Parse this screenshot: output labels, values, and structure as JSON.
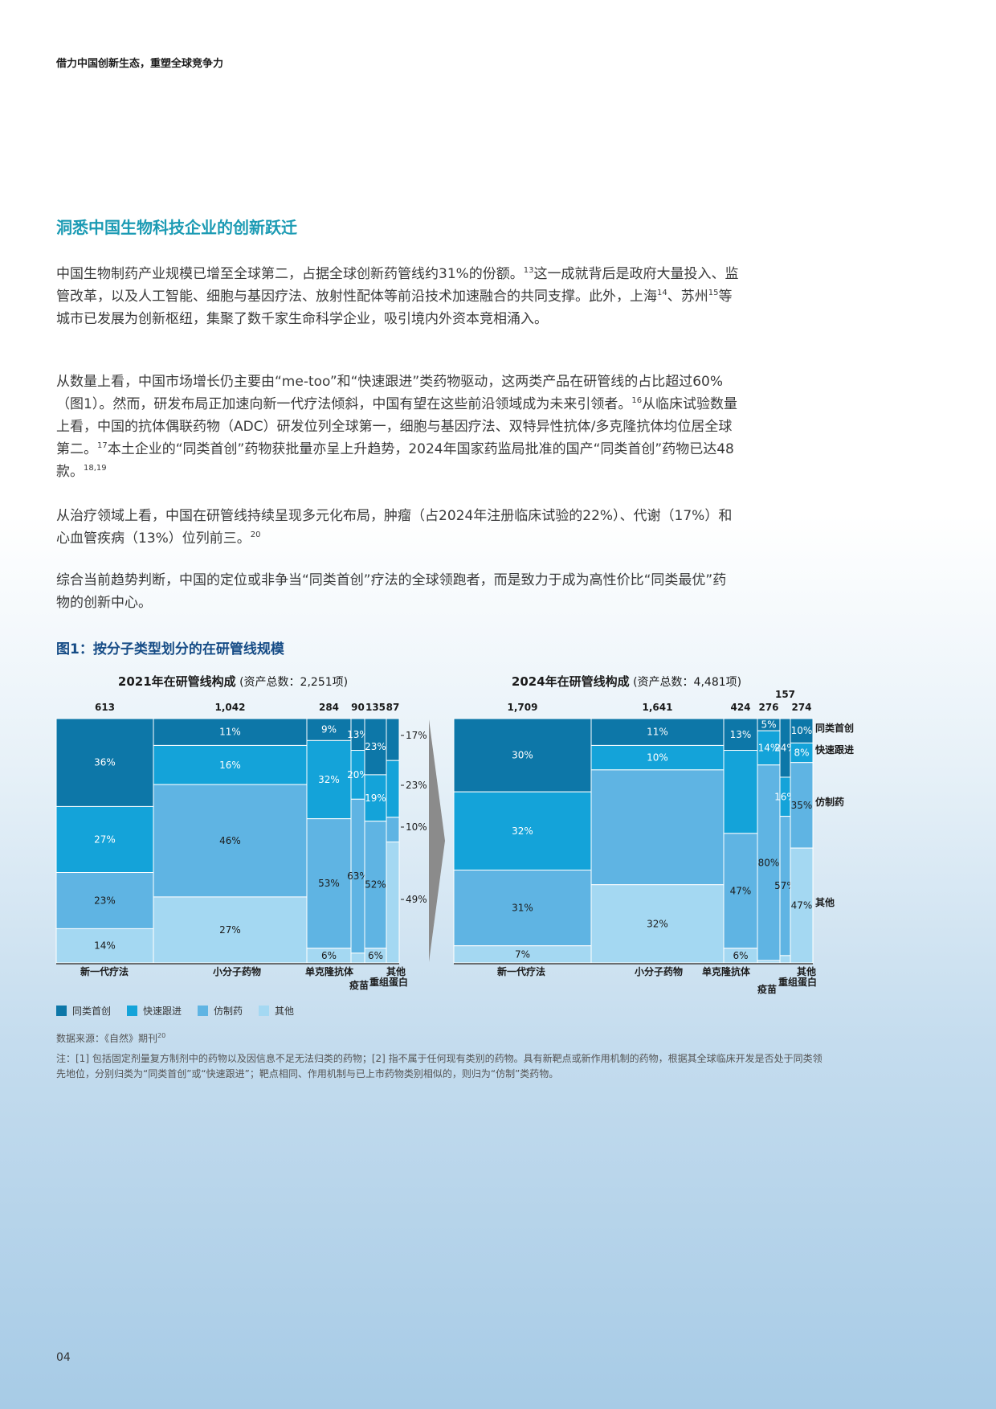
{
  "header": {
    "running_title": "借力中国创新生态，重塑全球竞争力"
  },
  "section": {
    "title": "洞悉中国生物科技企业的创新跃迁"
  },
  "paragraphs": {
    "p1": [
      {
        "t": "中国生物制药产业规模已增至全球第二，占据全球创新药管线约31%的份额。"
      },
      {
        "sup": "13"
      },
      {
        "t": "这一成就背后是政府大量投入、监管改革，以及人工智能、细胞与基因疗法、放射性配体等前沿技术加速融合的共同支撑。此外，上海"
      },
      {
        "sup": "14"
      },
      {
        "t": "、苏州"
      },
      {
        "sup": "15"
      },
      {
        "t": "等城市已发展为创新枢纽，集聚了数千家生命科学企业，吸引境内外资本竞相涌入。"
      }
    ],
    "p2": [
      {
        "t": "从数量上看，中国市场增长仍主要由“me-too”和“快速跟进”类药物驱动，这两类产品在研管线的占比超过60%（图1）。然而，研发布局正加速向新一代疗法倾斜，中国有望在这些前沿领域成为未来引领者。"
      },
      {
        "sup": "16"
      },
      {
        "t": "从临床试验数量上看，中国的抗体偶联药物（ADC）研发位列全球第一，细胞与基因疗法、双特异性抗体/多克隆抗体均位居全球第二。"
      },
      {
        "sup": "17"
      },
      {
        "t": "本土企业的“同类首创”药物获批量亦呈上升趋势，2024年国家药监局批准的国产“同类首创”药物已达48款。"
      },
      {
        "sup": "18,19"
      }
    ],
    "p3": [
      {
        "t": "从治疗领域上看，中国在研管线持续呈现多元化布局，肿瘤（占2024年注册临床试验的22%）、代谢（17%）和心血管疾病（13%）位列前三。"
      },
      {
        "sup": "20"
      }
    ],
    "p4": [
      {
        "t": "综合当前趋势判断，中国的定位或非争当“同类首创”疗法的全球领跑者，而是致力于成为高性价比“同类最优”药物的创新中心。"
      }
    ]
  },
  "figure": {
    "title": "图1：按分子类型划分的在研管线规模",
    "source_text": "数据来源：《自然》期刊",
    "source_sup": "20",
    "note": "注：[1] 包括固定剂量复方制剂中的药物以及因信息不足无法归类的药物；[2] 指不属于任何现有类别的药物。具有新靶点或新作用机制的药物，根据其全球临床开发是否处于同类领先地位，分别归类为“同类首创”或“快速跟进”；靶点相同、作用机制与已上市药物类别相似的，则归为“仿制”类药物。"
  },
  "chart_data": [
    {
      "type": "marimekko",
      "title": "2021年在研管线构成",
      "subtitle": "(资产总数：2,251项)",
      "segments": [
        "同类首创",
        "快速跟进",
        "仿制药",
        "其他"
      ],
      "columns": [
        {
          "label": "新一代疗法",
          "total": "613",
          "values": [
            36,
            27,
            23,
            14
          ],
          "labels": [
            "36%",
            "27%",
            "23%",
            "14%"
          ]
        },
        {
          "label": "小分子药物",
          "total": "1,042",
          "values": [
            11,
            16,
            46,
            27
          ],
          "labels": [
            "11%",
            "16%",
            "46%",
            "27%"
          ]
        },
        {
          "label": "单克隆抗体",
          "total": "284",
          "values": [
            9,
            32,
            53,
            6
          ],
          "labels": [
            "9%",
            "32%",
            "53%",
            "6%"
          ]
        },
        {
          "label": "疫苗",
          "total": "90",
          "values": [
            13,
            20,
            63,
            4
          ],
          "labels": [
            "13%",
            "20%",
            "63%",
            ""
          ]
        },
        {
          "label": "重组蛋白",
          "total": "135",
          "values": [
            23,
            19,
            52,
            6
          ],
          "labels": [
            "23%",
            "19%",
            "52%",
            "6%"
          ]
        },
        {
          "label": "其他",
          "total": "87",
          "values": [
            17,
            23,
            10,
            49
          ],
          "labels": [
            "",
            "",
            "",
            ""
          ]
        }
      ],
      "side_labels": [
        "17%",
        "23%",
        "10%",
        "49%"
      ],
      "colors": [
        "#0d77a8",
        "#14a3d9",
        "#5fb4e3",
        "#a4d8f2"
      ]
    },
    {
      "type": "marimekko",
      "title": "2024年在研管线构成",
      "subtitle": "(资产总数：4,481项)",
      "segments": [
        "同类首创",
        "快速跟进",
        "仿制药",
        "其他"
      ],
      "columns": [
        {
          "label": "新一代疗法",
          "total": "1,709",
          "values": [
            30,
            32,
            31,
            7
          ],
          "labels": [
            "30%",
            "32%",
            "31%",
            "7%"
          ]
        },
        {
          "label": "小分子药物",
          "total": "1,641",
          "values": [
            11,
            10,
            47,
            32
          ],
          "labels": [
            "11%",
            "10%",
            "",
            "32%"
          ]
        },
        {
          "label": "单克隆抗体",
          "total": "424",
          "values": [
            13,
            34,
            47,
            6
          ],
          "labels": [
            "13%",
            "",
            "47%",
            "6%"
          ]
        },
        {
          "label": "疫苗",
          "total": "276",
          "values": [
            5,
            14,
            80,
            1
          ],
          "labels": [
            "5%",
            "14%",
            "80%",
            ""
          ]
        },
        {
          "label": "重组蛋白",
          "total": "157",
          "values": [
            24,
            16,
            57,
            3
          ],
          "labels": [
            "24%",
            "16%",
            "57%",
            ""
          ]
        },
        {
          "label": "其他",
          "total": "274",
          "values": [
            10,
            8,
            35,
            47
          ],
          "labels": [
            "10%",
            "8%",
            "35%",
            "47%"
          ]
        }
      ],
      "series_names": [
        "同类首创",
        "快速跟进",
        "仿制药",
        "其他"
      ],
      "colors": [
        "#0d77a8",
        "#14a3d9",
        "#5fb4e3",
        "#a4d8f2"
      ]
    }
  ],
  "legend": [
    {
      "label": "同类首创",
      "color": "#0d77a8"
    },
    {
      "label": "快速跟进",
      "color": "#14a3d9"
    },
    {
      "label": "仿制药",
      "color": "#5fb4e3"
    },
    {
      "label": "其他",
      "color": "#a4d8f2"
    }
  ],
  "footer": {
    "page_number": "04"
  }
}
